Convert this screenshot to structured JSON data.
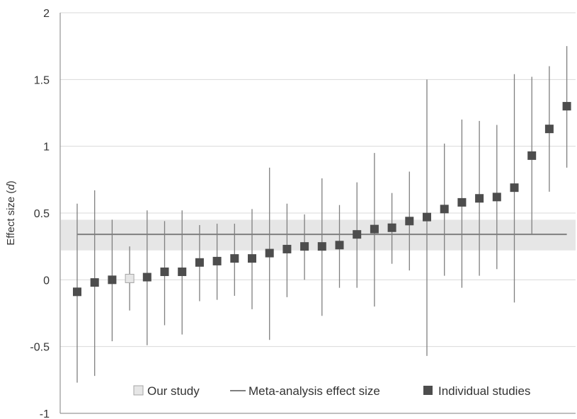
{
  "chart_data": {
    "type": "scatter",
    "ylabel_main": "Effect size (",
    "ylabel_italic": "d",
    "ylabel_end": ")",
    "ylim": [
      -1,
      2
    ],
    "yticks": [
      -1,
      -0.5,
      0,
      0.5,
      1,
      1.5,
      2
    ],
    "ytick_labels": [
      "-1",
      "-0.5",
      "0",
      "0.5",
      "1",
      "1.5",
      "2"
    ],
    "grid": true,
    "legend_position": "bottom",
    "meta_analysis": {
      "name": "Meta-analysis effect size",
      "value": 0.34,
      "ci_low": 0.22,
      "ci_high": 0.45
    },
    "series": [
      {
        "name": "Individual studies",
        "color": "#4d4d4d",
        "points": [
          {
            "y": -0.09,
            "low": -0.77,
            "high": 0.57
          },
          {
            "y": -0.02,
            "low": -0.72,
            "high": 0.67
          },
          {
            "y": 0.0,
            "low": -0.46,
            "high": 0.45
          },
          {
            "y": 0.02,
            "low": -0.49,
            "high": 0.52
          },
          {
            "y": 0.06,
            "low": -0.34,
            "high": 0.44
          },
          {
            "y": 0.06,
            "low": -0.41,
            "high": 0.52
          },
          {
            "y": 0.13,
            "low": -0.16,
            "high": 0.41
          },
          {
            "y": 0.14,
            "low": -0.15,
            "high": 0.42
          },
          {
            "y": 0.16,
            "low": -0.12,
            "high": 0.42
          },
          {
            "y": 0.16,
            "low": -0.22,
            "high": 0.53
          },
          {
            "y": 0.2,
            "low": -0.45,
            "high": 0.84
          },
          {
            "y": 0.23,
            "low": -0.13,
            "high": 0.57
          },
          {
            "y": 0.25,
            "low": 0.0,
            "high": 0.49
          },
          {
            "y": 0.25,
            "low": -0.27,
            "high": 0.76
          },
          {
            "y": 0.26,
            "low": -0.06,
            "high": 0.56
          },
          {
            "y": 0.34,
            "low": -0.06,
            "high": 0.73
          },
          {
            "y": 0.38,
            "low": -0.2,
            "high": 0.95
          },
          {
            "y": 0.39,
            "low": 0.12,
            "high": 0.65
          },
          {
            "y": 0.44,
            "low": 0.07,
            "high": 0.81
          },
          {
            "y": 0.47,
            "low": -0.57,
            "high": 1.5
          },
          {
            "y": 0.53,
            "low": 0.03,
            "high": 1.02
          },
          {
            "y": 0.58,
            "low": -0.06,
            "high": 1.2
          },
          {
            "y": 0.61,
            "low": 0.03,
            "high": 1.19
          },
          {
            "y": 0.62,
            "low": 0.08,
            "high": 1.16
          },
          {
            "y": 0.69,
            "low": -0.17,
            "high": 1.54
          },
          {
            "y": 0.93,
            "low": 0.34,
            "high": 1.52
          },
          {
            "y": 1.13,
            "low": 0.66,
            "high": 1.6
          },
          {
            "y": 1.3,
            "low": 0.84,
            "high": 1.75
          }
        ]
      },
      {
        "name": "Our study",
        "color": "#e6e6e6",
        "points": [
          {
            "y": 0.01,
            "low": -0.23,
            "high": 0.25
          }
        ]
      }
    ],
    "display_order": [
      "I0",
      "I1",
      "I2",
      "O0",
      "I3",
      "I4",
      "I5",
      "I6",
      "I7",
      "I8",
      "I9",
      "I10",
      "I11",
      "I12",
      "I13",
      "I14",
      "I15",
      "I16",
      "I17",
      "I18",
      "I19",
      "I20",
      "I21",
      "I22",
      "I23",
      "I24",
      "I25",
      "I26",
      "I27"
    ]
  },
  "legend": {
    "our_study": "Our study",
    "meta": "Meta-analysis effect size",
    "individual": "Individual studies"
  },
  "colors": {
    "band": "#e6e6e6",
    "meta_line": "#7f7f7f",
    "whisker": "#7f7f7f",
    "grid": "#d9d9d9",
    "axis": "#7f7f7f"
  }
}
